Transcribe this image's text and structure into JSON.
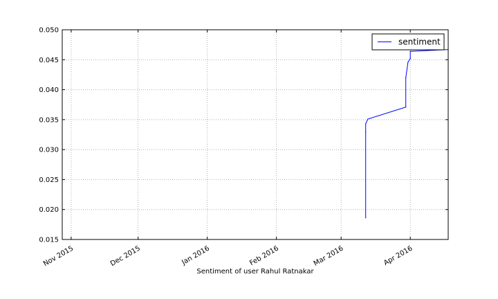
{
  "chart_data": {
    "type": "line",
    "title": "",
    "xlabel": "Sentiment of user Rahul Ratnakar",
    "ylabel": "",
    "grid": true,
    "legend_position": "top-right",
    "x_ticks": [
      "Nov 2015",
      "Dec 2015",
      "Jan 2016",
      "Feb 2016",
      "Mar 2016",
      "Apr 2016"
    ],
    "x_tick_dates": [
      "2015-11-01",
      "2015-12-01",
      "2016-01-01",
      "2016-02-01",
      "2016-03-01",
      "2016-04-01"
    ],
    "xlim": [
      "2015-10-28",
      "2016-04-18"
    ],
    "ylim": [
      0.015,
      0.05
    ],
    "y_ticks": [
      "0.015",
      "0.020",
      "0.025",
      "0.030",
      "0.035",
      "0.040",
      "0.045",
      "0.050"
    ],
    "series": [
      {
        "name": "sentiment",
        "color": "#0000ff",
        "points": [
          {
            "x": "2016-03-12",
            "y": 0.0186
          },
          {
            "x": "2016-03-12",
            "y": 0.033
          },
          {
            "x": "2016-03-12",
            "y": 0.0343
          },
          {
            "x": "2016-03-13",
            "y": 0.0351
          },
          {
            "x": "2016-03-30",
            "y": 0.0371
          },
          {
            "x": "2016-03-30",
            "y": 0.042
          },
          {
            "x": "2016-03-31",
            "y": 0.0446
          },
          {
            "x": "2016-04-01",
            "y": 0.0452
          },
          {
            "x": "2016-04-01",
            "y": 0.0464
          },
          {
            "x": "2016-04-18",
            "y": 0.0467
          }
        ]
      }
    ]
  }
}
